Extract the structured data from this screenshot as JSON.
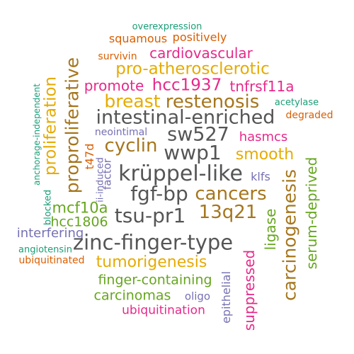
{
  "cloud": {
    "words": [
      {
        "id": "overexpression",
        "text": "overexpression",
        "color": "#1b9e77"
      },
      {
        "id": "squamous",
        "text": "squamous",
        "color": "#d95f02"
      },
      {
        "id": "positively",
        "text": "positively",
        "color": "#d95f02"
      },
      {
        "id": "survivin",
        "text": "survivin",
        "color": "#d95f02"
      },
      {
        "id": "cardiovascular",
        "text": "cardiovascular",
        "color": "#e7298a"
      },
      {
        "id": "pro-atherosclerotic",
        "text": "pro-atherosclerotic",
        "color": "#e6ab02"
      },
      {
        "id": "promote",
        "text": "promote",
        "color": "#e7298a"
      },
      {
        "id": "hcc1937",
        "text": "hcc1937",
        "color": "#e7298a"
      },
      {
        "id": "tnfrsf11a",
        "text": "tnfrsf11a",
        "color": "#e7298a"
      },
      {
        "id": "breast",
        "text": "breast",
        "color": "#e6ab02"
      },
      {
        "id": "restenosis",
        "text": "restenosis",
        "color": "#a6761d"
      },
      {
        "id": "acetylase",
        "text": "acetylase",
        "color": "#1b9e77"
      },
      {
        "id": "degraded",
        "text": "degraded",
        "color": "#d95f02"
      },
      {
        "id": "intestinal-enriched",
        "text": "intestinal-enriched",
        "color": "#555555"
      },
      {
        "id": "neointimal",
        "text": "neointimal",
        "color": "#7570b3"
      },
      {
        "id": "sw527",
        "text": "sw527",
        "color": "#555555"
      },
      {
        "id": "hasmcs",
        "text": "hasmcs",
        "color": "#e7298a"
      },
      {
        "id": "cyclin",
        "text": "cyclin",
        "color": "#a6761d"
      },
      {
        "id": "wwp1",
        "text": "wwp1",
        "color": "#555555"
      },
      {
        "id": "smooth",
        "text": "smooth",
        "color": "#e6ab02"
      },
      {
        "id": "t47d",
        "text": "t47d",
        "color": "#d95f02"
      },
      {
        "id": "ii-induced",
        "text": "ii-induced",
        "color": "#7570b3"
      },
      {
        "id": "factor",
        "text": "factor",
        "color": "#7570b3"
      },
      {
        "id": "kruppel-like",
        "text": "krüppel-like",
        "color": "#555555"
      },
      {
        "id": "klfs",
        "text": "klfs",
        "color": "#7570b3"
      },
      {
        "id": "fgf-bp",
        "text": "fgf-bp",
        "color": "#555555"
      },
      {
        "id": "cancers",
        "text": "cancers",
        "color": "#a6761d"
      },
      {
        "id": "mcf10a",
        "text": "mcf10a",
        "color": "#66a61e"
      },
      {
        "id": "tsu-pr1",
        "text": "tsu-pr1",
        "color": "#555555"
      },
      {
        "id": "13q21",
        "text": "13q21",
        "color": "#a6761d"
      },
      {
        "id": "hcc1806",
        "text": "hcc1806",
        "color": "#66a61e"
      },
      {
        "id": "interfering",
        "text": "interfering",
        "color": "#7570b3"
      },
      {
        "id": "zinc-finger-type",
        "text": "zinc-finger-type",
        "color": "#555555"
      },
      {
        "id": "angiotensin",
        "text": "angiotensin",
        "color": "#1b9e77"
      },
      {
        "id": "ubiquitinated",
        "text": "ubiquitinated",
        "color": "#d95f02"
      },
      {
        "id": "tumorigenesis",
        "text": "tumorigenesis",
        "color": "#e6ab02"
      },
      {
        "id": "finger-containing",
        "text": "finger-containing",
        "color": "#66a61e"
      },
      {
        "id": "carcinomas",
        "text": "carcinomas",
        "color": "#66a61e"
      },
      {
        "id": "oligo",
        "text": "oligo",
        "color": "#7570b3"
      },
      {
        "id": "ubiquitination",
        "text": "ubiquitination",
        "color": "#e7298a"
      },
      {
        "id": "proliferation",
        "text": "proliferation",
        "color": "#e6ab02"
      },
      {
        "id": "proproliferative",
        "text": "proproliferative",
        "color": "#a6761d"
      },
      {
        "id": "anchorage-independent",
        "text": "anchorage-independent",
        "color": "#1b9e77"
      },
      {
        "id": "blocked",
        "text": "blocked",
        "color": "#1b9e77"
      },
      {
        "id": "carcinogenesis",
        "text": "carcinogenesis",
        "color": "#a6761d"
      },
      {
        "id": "serum-deprived",
        "text": "serum-deprived",
        "color": "#66a61e"
      },
      {
        "id": "ligase",
        "text": "ligase",
        "color": "#66a61e"
      },
      {
        "id": "suppressed",
        "text": "suppressed",
        "color": "#e7298a"
      },
      {
        "id": "epithelial",
        "text": "epithelial",
        "color": "#7570b3"
      }
    ]
  }
}
